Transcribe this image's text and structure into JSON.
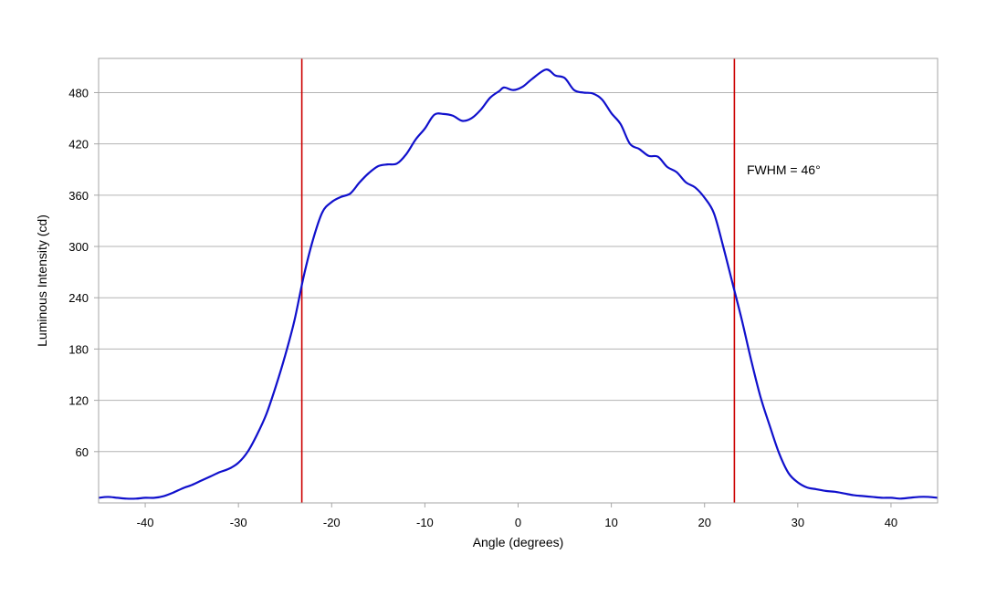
{
  "chart_data": {
    "type": "line",
    "title": "",
    "xlabel": "Angle (degrees)",
    "ylabel": "Luminous Intensity (cd)",
    "xlim": [
      -45,
      45
    ],
    "ylim": [
      0,
      520
    ],
    "x_ticks": [
      -40,
      -30,
      -20,
      -10,
      0,
      10,
      20,
      30,
      40
    ],
    "y_ticks": [
      60,
      120,
      180,
      240,
      300,
      360,
      420,
      480
    ],
    "grid": "horizontal",
    "legend": "none",
    "annotation": "FWHM = 46°",
    "reference_lines": [
      {
        "x": -23.2,
        "color": "#cc0000"
      },
      {
        "x": 23.2,
        "color": "#cc0000"
      }
    ],
    "series": [
      {
        "color": "#1010cc",
        "points": [
          [
            -45,
            6
          ],
          [
            -44,
            7
          ],
          [
            -43,
            6
          ],
          [
            -42,
            5
          ],
          [
            -41,
            5
          ],
          [
            -40,
            6
          ],
          [
            -39,
            6
          ],
          [
            -38,
            8
          ],
          [
            -37,
            12
          ],
          [
            -36,
            17
          ],
          [
            -35,
            21
          ],
          [
            -34,
            26
          ],
          [
            -33,
            31
          ],
          [
            -32,
            36
          ],
          [
            -31,
            40
          ],
          [
            -30,
            47
          ],
          [
            -29,
            60
          ],
          [
            -28,
            80
          ],
          [
            -27,
            104
          ],
          [
            -26,
            136
          ],
          [
            -25,
            172
          ],
          [
            -24,
            213
          ],
          [
            -23,
            265
          ],
          [
            -22,
            308
          ],
          [
            -21,
            340
          ],
          [
            -20,
            352
          ],
          [
            -19,
            358
          ],
          [
            -18,
            362
          ],
          [
            -17,
            375
          ],
          [
            -16,
            386
          ],
          [
            -15,
            394
          ],
          [
            -14,
            396
          ],
          [
            -13,
            397
          ],
          [
            -12,
            408
          ],
          [
            -11,
            425
          ],
          [
            -10,
            438
          ],
          [
            -9,
            454
          ],
          [
            -8,
            455
          ],
          [
            -7,
            453
          ],
          [
            -6,
            447
          ],
          [
            -5,
            450
          ],
          [
            -4,
            460
          ],
          [
            -3,
            474
          ],
          [
            -2,
            482
          ],
          [
            -1.5,
            486
          ],
          [
            -0.5,
            483
          ],
          [
            0.5,
            487
          ],
          [
            1.5,
            496
          ],
          [
            3,
            507
          ],
          [
            4,
            500
          ],
          [
            5,
            497
          ],
          [
            6,
            483
          ],
          [
            7,
            480
          ],
          [
            8,
            479
          ],
          [
            9,
            472
          ],
          [
            10,
            456
          ],
          [
            11,
            443
          ],
          [
            12,
            420
          ],
          [
            13,
            414
          ],
          [
            14,
            406
          ],
          [
            15,
            405
          ],
          [
            16,
            393
          ],
          [
            17,
            387
          ],
          [
            18,
            375
          ],
          [
            19,
            369
          ],
          [
            20,
            357
          ],
          [
            21,
            339
          ],
          [
            22,
            300
          ],
          [
            23,
            257
          ],
          [
            24,
            214
          ],
          [
            25,
            167
          ],
          [
            26,
            124
          ],
          [
            27,
            90
          ],
          [
            28,
            58
          ],
          [
            29,
            35
          ],
          [
            30,
            24
          ],
          [
            31,
            18
          ],
          [
            32,
            16
          ],
          [
            33,
            14
          ],
          [
            34,
            13
          ],
          [
            35,
            11
          ],
          [
            36,
            9
          ],
          [
            37,
            8
          ],
          [
            38,
            7
          ],
          [
            39,
            6
          ],
          [
            40,
            6
          ],
          [
            41,
            5
          ],
          [
            42,
            6
          ],
          [
            43,
            7
          ],
          [
            44,
            7
          ],
          [
            45,
            6
          ]
        ]
      }
    ]
  }
}
